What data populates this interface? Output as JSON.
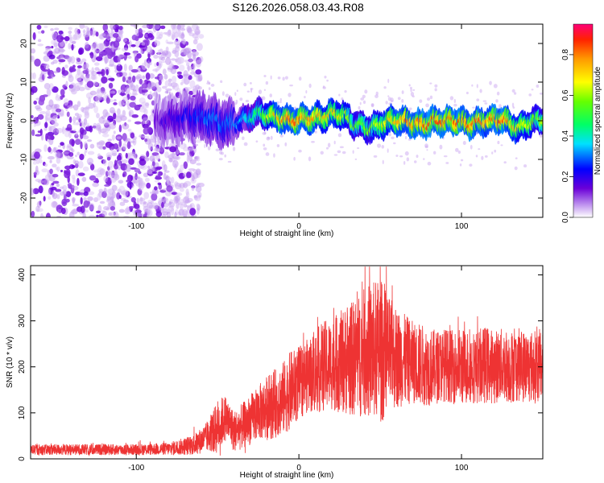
{
  "title": "S126.2026.058.03.43.R08",
  "chart_data": [
    {
      "type": "heatmap",
      "xlabel": "Height of straight line (km)",
      "ylabel": "Frequency (Hz)",
      "xlim": [
        -165,
        150
      ],
      "ylim": [
        -25,
        25
      ],
      "xticks": [
        -100,
        0,
        100
      ],
      "yticks": [
        -20,
        -10,
        0,
        10,
        20
      ],
      "colorbar": {
        "label": "Normalized spectral amplitude",
        "range": [
          0,
          0.95
        ],
        "ticks": [
          0.0,
          0.2,
          0.4,
          0.6,
          0.8
        ]
      },
      "ridge": {
        "x": [
          -85,
          -75,
          -65,
          -55,
          -45,
          -35,
          -25,
          -15,
          -5,
          5,
          15,
          25,
          35,
          45,
          55,
          65,
          75,
          85,
          95,
          105,
          115,
          125,
          135,
          145,
          150
        ],
        "freq": [
          0,
          0.5,
          1,
          0.5,
          -1,
          0,
          2,
          1,
          0,
          0.5,
          1,
          2,
          -1,
          -2,
          0,
          0,
          -1,
          0,
          0,
          -1,
          0,
          0.5,
          -2,
          0,
          0
        ],
        "amplitude": [
          0.15,
          0.2,
          0.25,
          0.3,
          0.3,
          0.35,
          0.5,
          0.75,
          0.85,
          0.8,
          0.75,
          0.7,
          0.55,
          0.6,
          0.7,
          0.8,
          0.85,
          0.85,
          0.85,
          0.85,
          0.8,
          0.85,
          0.7,
          0.6,
          0.6
        ]
      },
      "noise_region_x": [
        -165,
        -70
      ]
    },
    {
      "type": "line",
      "xlabel": "Height of straight line (km)",
      "ylabel": "SNR (10 * v/v)",
      "xlim": [
        -165,
        150
      ],
      "ylim": [
        0,
        420
      ],
      "xticks": [
        -100,
        0,
        100
      ],
      "yticks": [
        0,
        100,
        200,
        300,
        400
      ],
      "series": [
        {
          "color": "#ee3333",
          "envelope_x": [
            -165,
            -140,
            -120,
            -100,
            -80,
            -65,
            -55,
            -50,
            -45,
            -40,
            -35,
            -30,
            -25,
            -20,
            -15,
            -10,
            -5,
            0,
            5,
            10,
            15,
            20,
            25,
            30,
            35,
            40,
            45,
            50,
            55,
            60,
            65,
            70,
            75,
            80,
            85,
            90,
            95,
            100,
            105,
            110,
            115,
            120,
            125,
            130,
            135,
            140,
            145,
            150
          ],
          "envelope_mean": [
            20,
            20,
            20,
            20,
            22,
            30,
            50,
            70,
            90,
            60,
            70,
            85,
            100,
            110,
            120,
            130,
            150,
            165,
            180,
            190,
            200,
            205,
            210,
            215,
            220,
            230,
            235,
            235,
            225,
            220,
            215,
            210,
            205,
            200,
            200,
            205,
            200,
            200,
            200,
            200,
            205,
            200,
            205,
            200,
            205,
            200,
            200,
            205
          ],
          "envelope_amp": [
            12,
            12,
            12,
            12,
            14,
            22,
            35,
            60,
            50,
            45,
            50,
            55,
            60,
            70,
            75,
            80,
            85,
            80,
            80,
            90,
            100,
            100,
            110,
            120,
            130,
            140,
            150,
            160,
            130,
            110,
            100,
            90,
            90,
            85,
            80,
            80,
            80,
            85,
            80,
            80,
            85,
            80,
            80,
            80,
            80,
            80,
            80,
            80
          ],
          "peak_x": 50,
          "peak_y": 418
        }
      ]
    }
  ]
}
